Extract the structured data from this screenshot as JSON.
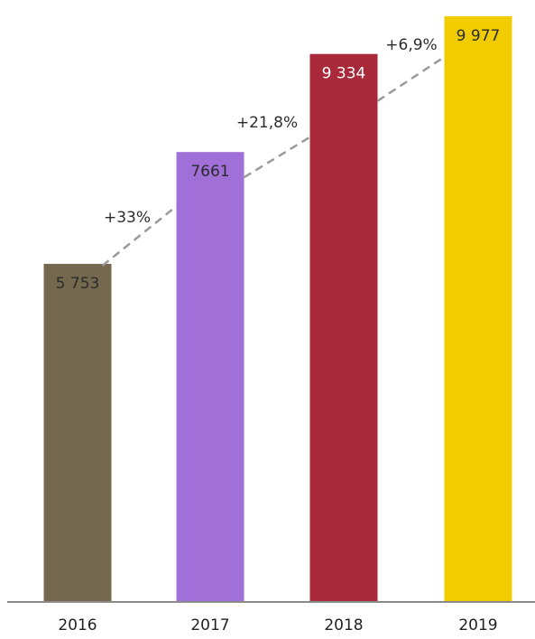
{
  "chart_data": {
    "type": "bar",
    "title": "",
    "xlabel": "",
    "ylabel": "",
    "categories": [
      "2016",
      "2017",
      "2018",
      "2019"
    ],
    "values": [
      5753,
      7661,
      9334,
      9977
    ],
    "value_labels": [
      "5 753",
      "7661",
      "9 334",
      "9 977"
    ],
    "growth_labels": [
      "+33%",
      "+21,8%",
      "+6,9%"
    ],
    "ylim": [
      0,
      10500
    ],
    "grid": false,
    "legend": "none",
    "trend_line": "dashed",
    "colors": [
      "#74694f",
      "#a070d8",
      "#a82a3a",
      "#f0cc00"
    ],
    "label_colors": [
      "#2b2b2b",
      "#2b2b2b",
      "#ffffff",
      "#2b2b2b"
    ],
    "trend_color": "#9a9a9a",
    "axis_color": "#8a8a8a"
  }
}
